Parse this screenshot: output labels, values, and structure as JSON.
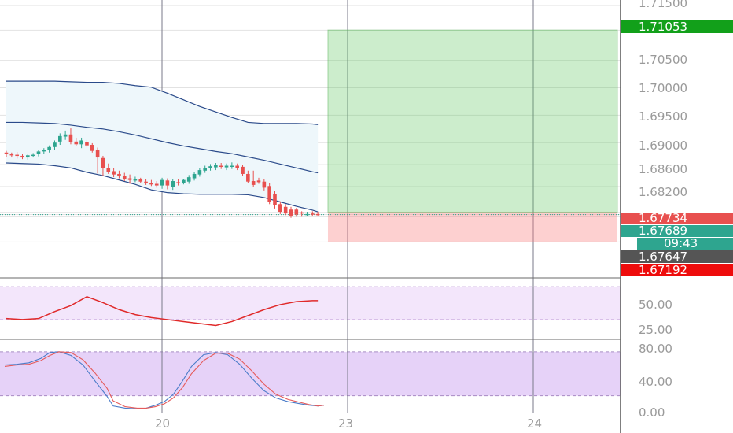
{
  "chart_data": [
    {
      "type": "candlestick",
      "panel": "price",
      "ylim": [
        1.6655,
        1.716
      ],
      "x_ticks": [
        "20",
        "23",
        "24"
      ],
      "y_ticks": [
        "1.71500",
        "1.71053",
        "1.70500",
        "1.70000",
        "1.69500",
        "1.69000",
        "1.68600",
        "1.68200",
        "1.67734",
        "1.67689",
        "1.67647",
        "1.67192"
      ],
      "price_labels": [
        {
          "text": "1.71053",
          "value": 1.71053,
          "color": "#12a01a"
        },
        {
          "text": "1.67734",
          "value": 1.67734,
          "color": "#e8504f"
        },
        {
          "text": "1.67689",
          "value": 1.67689,
          "color": "#2ea58f"
        },
        {
          "text": "09:43",
          "value": 1.67668,
          "color": "#2ea58f"
        },
        {
          "text": "1.67647",
          "value": 1.67647,
          "color": "#555555"
        },
        {
          "text": "1.67192",
          "value": 1.67192,
          "color": "#ee0c0c"
        }
      ],
      "candles": [
        [
          0,
          1.6882,
          1.6885,
          1.6874,
          1.6879
        ],
        [
          1,
          1.6879,
          1.6882,
          1.6873,
          1.6878
        ],
        [
          2,
          1.6878,
          1.6883,
          1.6871,
          1.6876
        ],
        [
          3,
          1.6876,
          1.688,
          1.687,
          1.6873
        ],
        [
          4,
          1.6873,
          1.688,
          1.6869,
          1.6877
        ],
        [
          5,
          1.6877,
          1.6881,
          1.6873,
          1.6878
        ],
        [
          6,
          1.6879,
          1.6886,
          1.6875,
          1.6884
        ],
        [
          7,
          1.6884,
          1.689,
          1.6879,
          1.6887
        ],
        [
          8,
          1.6887,
          1.6895,
          1.6882,
          1.6892
        ],
        [
          9,
          1.6892,
          1.6904,
          1.6887,
          1.69
        ],
        [
          10,
          1.6902,
          1.6917,
          1.6896,
          1.6912
        ],
        [
          11,
          1.6911,
          1.6922,
          1.6905,
          1.6915
        ],
        [
          12,
          1.6915,
          1.6926,
          1.6897,
          1.6901
        ],
        [
          13,
          1.6902,
          1.6909,
          1.6894,
          1.6897
        ],
        [
          14,
          1.6897,
          1.6909,
          1.689,
          1.6904
        ],
        [
          15,
          1.6901,
          1.6905,
          1.6891,
          1.6895
        ],
        [
          16,
          1.6896,
          1.6899,
          1.6882,
          1.6885
        ],
        [
          17,
          1.6887,
          1.6891,
          1.6844,
          1.6873
        ],
        [
          18,
          1.6872,
          1.6876,
          1.6839,
          1.6853
        ],
        [
          19,
          1.6854,
          1.6862,
          1.6843,
          1.6847
        ],
        [
          20,
          1.6848,
          1.6854,
          1.6837,
          1.6842
        ],
        [
          21,
          1.6843,
          1.6849,
          1.6835,
          1.6839
        ],
        [
          22,
          1.684,
          1.6845,
          1.683,
          1.6834
        ],
        [
          23,
          1.6835,
          1.6842,
          1.6825,
          1.6832
        ],
        [
          24,
          1.6832,
          1.6838,
          1.6828,
          1.6833
        ],
        [
          25,
          1.6833,
          1.6836,
          1.6826,
          1.6829
        ],
        [
          26,
          1.6829,
          1.6833,
          1.6823,
          1.6826
        ],
        [
          27,
          1.6826,
          1.6832,
          1.6821,
          1.6824
        ],
        [
          28,
          1.6825,
          1.683,
          1.6818,
          1.6822
        ],
        [
          29,
          1.6822,
          1.6836,
          1.6816,
          1.6832
        ],
        [
          30,
          1.6831,
          1.6835,
          1.6815,
          1.6822
        ],
        [
          31,
          1.6819,
          1.6834,
          1.6814,
          1.683
        ],
        [
          32,
          1.6828,
          1.6833,
          1.6822,
          1.6826
        ],
        [
          33,
          1.6827,
          1.6834,
          1.6824,
          1.6832
        ],
        [
          34,
          1.6829,
          1.6841,
          1.6825,
          1.6837
        ],
        [
          35,
          1.6835,
          1.6847,
          1.6831,
          1.6843
        ],
        [
          36,
          1.6842,
          1.6853,
          1.6838,
          1.685
        ],
        [
          37,
          1.6849,
          1.6858,
          1.6845,
          1.6854
        ],
        [
          38,
          1.6853,
          1.6861,
          1.6849,
          1.6857
        ],
        [
          39,
          1.6855,
          1.6863,
          1.685,
          1.6859
        ],
        [
          40,
          1.6858,
          1.6863,
          1.6852,
          1.6857
        ],
        [
          41,
          1.6855,
          1.6862,
          1.685,
          1.6858
        ],
        [
          42,
          1.6857,
          1.6864,
          1.6852,
          1.6858
        ],
        [
          43,
          1.6858,
          1.6862,
          1.685,
          1.6854
        ],
        [
          44,
          1.6856,
          1.686,
          1.684,
          1.6843
        ],
        [
          45,
          1.6843,
          1.6849,
          1.6826,
          1.6829
        ],
        [
          46,
          1.683,
          1.6849,
          1.682,
          1.6823
        ],
        [
          47,
          1.6831,
          1.6836,
          1.6825,
          1.6828
        ],
        [
          48,
          1.6829,
          1.6834,
          1.6813,
          1.6818
        ],
        [
          49,
          1.6821,
          1.6826,
          1.6788,
          1.6792
        ],
        [
          50,
          1.6806,
          1.6812,
          1.678,
          1.6786
        ],
        [
          51,
          1.6788,
          1.6793,
          1.677,
          1.6774
        ],
        [
          52,
          1.6783,
          1.6788,
          1.6768,
          1.6771
        ],
        [
          53,
          1.6778,
          1.6783,
          1.6763,
          1.6767
        ],
        [
          54,
          1.6778,
          1.6781,
          1.6765,
          1.6769
        ],
        [
          55,
          1.6773,
          1.6775,
          1.6765,
          1.6771
        ],
        [
          56,
          1.6769,
          1.6774,
          1.6766,
          1.677
        ],
        [
          57,
          1.6771,
          1.6775,
          1.6767,
          1.677
        ],
        [
          58,
          1.677,
          1.6774,
          1.6767,
          1.6769
        ]
      ],
      "bands": {
        "x": [
          0,
          3,
          6,
          9,
          12,
          15,
          18,
          21,
          24,
          27,
          30,
          33,
          36,
          39,
          42,
          45,
          48,
          51,
          54,
          57,
          58
        ],
        "upper": [
          1.7012,
          1.7012,
          1.7012,
          1.7012,
          1.7011,
          1.701,
          1.701,
          1.7008,
          1.7004,
          1.7001,
          1.699,
          1.6978,
          1.6966,
          1.6956,
          1.6946,
          1.6937,
          1.6935,
          1.6935,
          1.6935,
          1.6934,
          1.6933
        ],
        "middle": [
          1.6937,
          1.6937,
          1.6936,
          1.6935,
          1.6932,
          1.6928,
          1.6925,
          1.692,
          1.6914,
          1.6907,
          1.69,
          1.6894,
          1.6889,
          1.6884,
          1.688,
          1.6874,
          1.6868,
          1.6861,
          1.6854,
          1.6847,
          1.6845
        ],
        "lower": [
          1.6863,
          1.6862,
          1.6861,
          1.6858,
          1.6854,
          1.6846,
          1.684,
          1.6832,
          1.6824,
          1.6814,
          1.6809,
          1.6807,
          1.6806,
          1.6806,
          1.6806,
          1.6805,
          1.68,
          1.6792,
          1.6784,
          1.6777,
          1.6774
        ]
      },
      "position": {
        "entry": 1.67734,
        "target": 1.71053,
        "stop": 1.67192,
        "start_index": 59
      }
    },
    {
      "type": "line",
      "panel": "oscillator",
      "ylim": [
        8,
        68
      ],
      "y_ticks": [
        "50.00",
        "25.00"
      ],
      "band": [
        27,
        60
      ],
      "x": [
        0,
        3,
        6,
        9,
        12,
        15,
        18,
        21,
        24,
        27,
        30,
        33,
        36,
        39,
        42,
        45,
        48,
        51,
        54,
        57,
        58
      ],
      "values": [
        28,
        27,
        28,
        35,
        41,
        50,
        44,
        37,
        32,
        29,
        27,
        25,
        23,
        21,
        25,
        31,
        37,
        42,
        45,
        46,
        46
      ]
    },
    {
      "type": "line",
      "panel": "stochastic",
      "ylim": [
        -3,
        96
      ],
      "y_ticks": [
        "80.00",
        "40.00",
        "0.00"
      ],
      "band": [
        20,
        80
      ],
      "series": [
        {
          "color": "#4a7cc9",
          "x": [
            0,
            4,
            8,
            12,
            15,
            18,
            22,
            26,
            30,
            34,
            36,
            40,
            44,
            47,
            50,
            53,
            56,
            59,
            62,
            66,
            70,
            74,
            78,
            82,
            86,
            90,
            94,
            98,
            101,
            104,
            106
          ],
          "values": [
            62,
            63,
            65,
            71,
            79,
            80,
            75,
            62,
            40,
            19,
            6,
            3,
            2,
            3,
            7,
            12,
            22,
            40,
            60,
            76,
            79,
            76,
            63,
            44,
            27,
            17,
            12,
            9,
            7,
            6,
            7
          ]
        },
        {
          "color": "#e55b5b",
          "x": [
            0,
            4,
            8,
            12,
            15,
            18,
            22,
            26,
            30,
            34,
            36,
            40,
            44,
            47,
            50,
            53,
            56,
            59,
            62,
            66,
            70,
            74,
            78,
            82,
            86,
            90,
            94,
            98,
            101,
            104,
            106
          ],
          "values": [
            60,
            62,
            63,
            68,
            75,
            80,
            79,
            69,
            51,
            30,
            13,
            5,
            3,
            3,
            5,
            9,
            17,
            31,
            50,
            68,
            78,
            78,
            70,
            54,
            36,
            22,
            15,
            11,
            8,
            6,
            7
          ]
        }
      ]
    }
  ]
}
